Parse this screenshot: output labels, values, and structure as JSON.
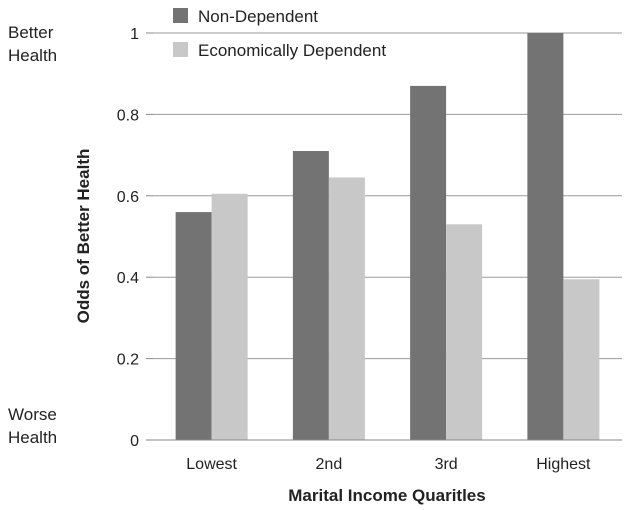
{
  "chart_data": {
    "type": "bar",
    "title": "",
    "xlabel": "Marital Income Quaritles",
    "ylabel": "Odds of Better Health",
    "categories": [
      "Lowest",
      "2nd",
      "3rd",
      "Highest"
    ],
    "series": [
      {
        "name": "Non-Dependent",
        "values": [
          0.56,
          0.71,
          0.87,
          1.0
        ],
        "color": "#737373"
      },
      {
        "name": "Economically Dependent",
        "values": [
          0.605,
          0.645,
          0.53,
          0.395
        ],
        "color": "#c8c8c8"
      }
    ],
    "ylim": [
      0,
      1
    ],
    "yticks": [
      "0",
      "0.2",
      "0.4",
      "0.6",
      "0.8",
      "1"
    ],
    "grid": true,
    "legend": "top-center",
    "annotations": {
      "top": [
        "Better",
        "Health"
      ],
      "bottom": [
        "Worse",
        "Health"
      ]
    }
  }
}
